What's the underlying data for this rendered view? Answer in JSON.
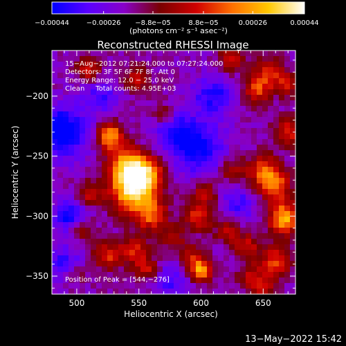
{
  "chart_data": {
    "type": "heatmap",
    "title": "Reconstructed RHESSI Image",
    "xlabel": "Heliocentric X (arcsec)",
    "ylabel": "Heliocentric Y (arcsec)",
    "xlim": [
      480,
      676
    ],
    "ylim": [
      -365,
      -162
    ],
    "x_ticks": [
      500,
      550,
      600,
      650
    ],
    "y_ticks": [
      -200,
      -250,
      -300,
      -350
    ],
    "x_tick_labels": [
      "500",
      "550",
      "600",
      "650"
    ],
    "y_tick_labels": [
      "−200",
      "−250",
      "−300",
      "−350"
    ],
    "colorbar": {
      "min": -0.00044,
      "max": 0.00044,
      "ticks": [
        -0.00044,
        -0.00026,
        -8.8e-05,
        8.8e-05,
        0.00026,
        0.00044
      ],
      "tick_labels": [
        "−0.00044",
        "−0.00026",
        "−8.8e−05",
        "8.8e−05",
        "0.00026",
        "0.00044"
      ],
      "units": "(photons cm⁻² s⁻¹ asec⁻²)",
      "colors": [
        "#0000ff",
        "#5a00ff",
        "#8800c8",
        "#7a0000",
        "#d00000",
        "#ff7000",
        "#ffc800",
        "#ffffff"
      ]
    },
    "annotations": {
      "time_range": "15−Aug−2012 07:21:24.000 to 07:27:24.000",
      "detectors": "Detectors: 3F 5F 6F 7F 8F, Att 0",
      "energy_range": "Energy Range: 12.0 − 25.0 keV",
      "clean_counts": "Clean     Total counts: 4.95E+03",
      "peak_position": "Position of Peak = [544,−276]"
    },
    "peak": {
      "x": 544,
      "y": -276
    },
    "sources": [
      {
        "x": 546,
        "y": -278,
        "amplitude": 1.0,
        "sigma": 13
      },
      {
        "x": 540,
        "y": -258,
        "amplitude": 0.7,
        "sigma": 10
      },
      {
        "x": 557,
        "y": -262,
        "amplitude": 0.55,
        "sigma": 9
      },
      {
        "x": 560,
        "y": -300,
        "amplitude": 0.5,
        "sigma": 9
      },
      {
        "x": 528,
        "y": -236,
        "amplitude": 0.45,
        "sigma": 8
      },
      {
        "x": 525,
        "y": -230,
        "amplitude": 0.4,
        "sigma": 7
      },
      {
        "x": 510,
        "y": -178,
        "amplitude": 0.42,
        "sigma": 7
      },
      {
        "x": 548,
        "y": -185,
        "amplitude": 0.42,
        "sigma": 7
      },
      {
        "x": 510,
        "y": -282,
        "amplitude": 0.42,
        "sigma": 7
      },
      {
        "x": 504,
        "y": -310,
        "amplitude": 0.38,
        "sigma": 7
      },
      {
        "x": 525,
        "y": -333,
        "amplitude": 0.45,
        "sigma": 8
      },
      {
        "x": 556,
        "y": -344,
        "amplitude": 0.4,
        "sigma": 7
      },
      {
        "x": 546,
        "y": -328,
        "amplitude": 0.45,
        "sigma": 8
      },
      {
        "x": 598,
        "y": -300,
        "amplitude": 0.48,
        "sigma": 8
      },
      {
        "x": 603,
        "y": -280,
        "amplitude": 0.38,
        "sigma": 7
      },
      {
        "x": 594,
        "y": -335,
        "amplitude": 0.4,
        "sigma": 7
      },
      {
        "x": 600,
        "y": -346,
        "amplitude": 0.7,
        "sigma": 6
      },
      {
        "x": 622,
        "y": -312,
        "amplitude": 0.38,
        "sigma": 7
      },
      {
        "x": 637,
        "y": -325,
        "amplitude": 0.4,
        "sigma": 7
      },
      {
        "x": 625,
        "y": -262,
        "amplitude": 0.35,
        "sigma": 7
      },
      {
        "x": 650,
        "y": -262,
        "amplitude": 0.55,
        "sigma": 9
      },
      {
        "x": 660,
        "y": -275,
        "amplitude": 0.55,
        "sigma": 9
      },
      {
        "x": 667,
        "y": -302,
        "amplitude": 0.8,
        "sigma": 9
      },
      {
        "x": 660,
        "y": -338,
        "amplitude": 0.5,
        "sigma": 9
      },
      {
        "x": 645,
        "y": -195,
        "amplitude": 0.5,
        "sigma": 8
      },
      {
        "x": 655,
        "y": -180,
        "amplitude": 0.45,
        "sigma": 8
      },
      {
        "x": 670,
        "y": -230,
        "amplitude": 0.45,
        "sigma": 8
      },
      {
        "x": 625,
        "y": -170,
        "amplitude": 0.45,
        "sigma": 7
      },
      {
        "x": 670,
        "y": -190,
        "amplitude": 0.4,
        "sigma": 7
      },
      {
        "x": 640,
        "y": -350,
        "amplitude": 0.35,
        "sigma": 7
      },
      {
        "x": 650,
        "y": -360,
        "amplitude": 0.35,
        "sigma": 7
      },
      {
        "x": 578,
        "y": -318,
        "amplitude": 0.3,
        "sigma": 7
      },
      {
        "x": 498,
        "y": -348,
        "amplitude": 0.25,
        "sigma": 6
      },
      {
        "x": 570,
        "y": -215,
        "amplitude": 0.3,
        "sigma": 6
      }
    ],
    "negative_regions": [
      {
        "x": 488,
        "y": -230,
        "amplitude": -0.6,
        "sigma": 15
      },
      {
        "x": 495,
        "y": -300,
        "amplitude": -0.5,
        "sigma": 10
      },
      {
        "x": 598,
        "y": -245,
        "amplitude": -0.45,
        "sigma": 15
      },
      {
        "x": 610,
        "y": -200,
        "amplitude": -0.4,
        "sigma": 12
      },
      {
        "x": 580,
        "y": -230,
        "amplitude": -0.35,
        "sigma": 12
      },
      {
        "x": 490,
        "y": -340,
        "amplitude": -0.35,
        "sigma": 10
      },
      {
        "x": 630,
        "y": -290,
        "amplitude": -0.3,
        "sigma": 10
      },
      {
        "x": 575,
        "y": -355,
        "amplitude": -0.3,
        "sigma": 10
      },
      {
        "x": 520,
        "y": -200,
        "amplitude": -0.3,
        "sigma": 10
      }
    ]
  },
  "footer": {
    "date_stamp": "13−May−2022 15:42"
  }
}
